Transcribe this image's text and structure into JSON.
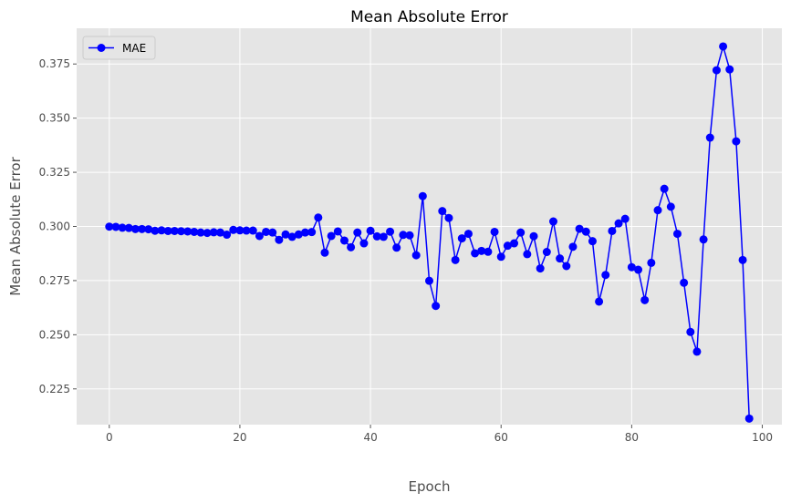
{
  "chart_data": {
    "type": "line",
    "title": "Mean Absolute Error",
    "xlabel": "Epoch",
    "ylabel": "Mean Absolute Error",
    "xlim": [
      -5,
      103
    ],
    "ylim": [
      0.2085,
      0.3915
    ],
    "x_ticks": [
      0,
      20,
      40,
      60,
      80,
      100
    ],
    "x_tick_labels": [
      "0",
      "20",
      "40",
      "60",
      "80",
      "100"
    ],
    "y_ticks": [
      0.225,
      0.25,
      0.275,
      0.3,
      0.325,
      0.35,
      0.375
    ],
    "y_tick_labels": [
      "0.225",
      "0.250",
      "0.275",
      "0.300",
      "0.325",
      "0.350",
      "0.375"
    ],
    "grid": true,
    "legend_position": "top-left",
    "style": {
      "background": "#e5e5e5",
      "grid_color": "#ffffff",
      "line_color": "#0000ff",
      "marker_color": "#0000ff"
    },
    "series": [
      {
        "name": "MAE",
        "x": [
          0,
          1,
          2,
          3,
          4,
          5,
          6,
          7,
          8,
          9,
          10,
          11,
          12,
          13,
          14,
          15,
          16,
          17,
          18,
          19,
          20,
          21,
          22,
          23,
          24,
          25,
          26,
          27,
          28,
          29,
          30,
          31,
          32,
          33,
          34,
          35,
          36,
          37,
          38,
          39,
          40,
          41,
          42,
          43,
          44,
          45,
          46,
          47,
          48,
          49,
          50,
          51,
          52,
          53,
          54,
          55,
          56,
          57,
          58,
          59,
          60,
          61,
          62,
          63,
          64,
          65,
          66,
          67,
          68,
          69,
          70,
          71,
          72,
          73,
          74,
          75,
          76,
          77,
          78,
          79,
          80,
          81,
          82,
          83,
          84,
          85,
          86,
          87,
          88,
          89,
          90,
          91,
          92,
          93,
          94,
          95,
          96,
          97,
          98
        ],
        "values": [
          0.2999,
          0.2998,
          0.2994,
          0.2993,
          0.2988,
          0.2988,
          0.2987,
          0.298,
          0.2982,
          0.2979,
          0.2979,
          0.2978,
          0.2977,
          0.2975,
          0.2972,
          0.297,
          0.2973,
          0.2972,
          0.2962,
          0.2984,
          0.2982,
          0.2981,
          0.2981,
          0.2956,
          0.2975,
          0.2972,
          0.2938,
          0.2963,
          0.2952,
          0.2963,
          0.2972,
          0.2974,
          0.3041,
          0.2879,
          0.2956,
          0.2977,
          0.2935,
          0.2904,
          0.2972,
          0.2922,
          0.298,
          0.2954,
          0.2952,
          0.2976,
          0.2902,
          0.2961,
          0.2959,
          0.2867,
          0.314,
          0.2749,
          0.2633,
          0.3071,
          0.3039,
          0.2845,
          0.2945,
          0.2966,
          0.2876,
          0.2887,
          0.2883,
          0.2975,
          0.286,
          0.2911,
          0.2922,
          0.2972,
          0.2872,
          0.2955,
          0.2806,
          0.2882,
          0.3023,
          0.2852,
          0.2817,
          0.2906,
          0.2989,
          0.2976,
          0.2932,
          0.2653,
          0.2776,
          0.2979,
          0.3014,
          0.3035,
          0.2812,
          0.28,
          0.266,
          0.2832,
          0.3075,
          0.3174,
          0.3091,
          0.2966,
          0.274,
          0.2513,
          0.2422,
          0.294,
          0.341,
          0.3721,
          0.3831,
          0.3725,
          0.3393,
          0.2845,
          0.2113
        ]
      }
    ]
  }
}
